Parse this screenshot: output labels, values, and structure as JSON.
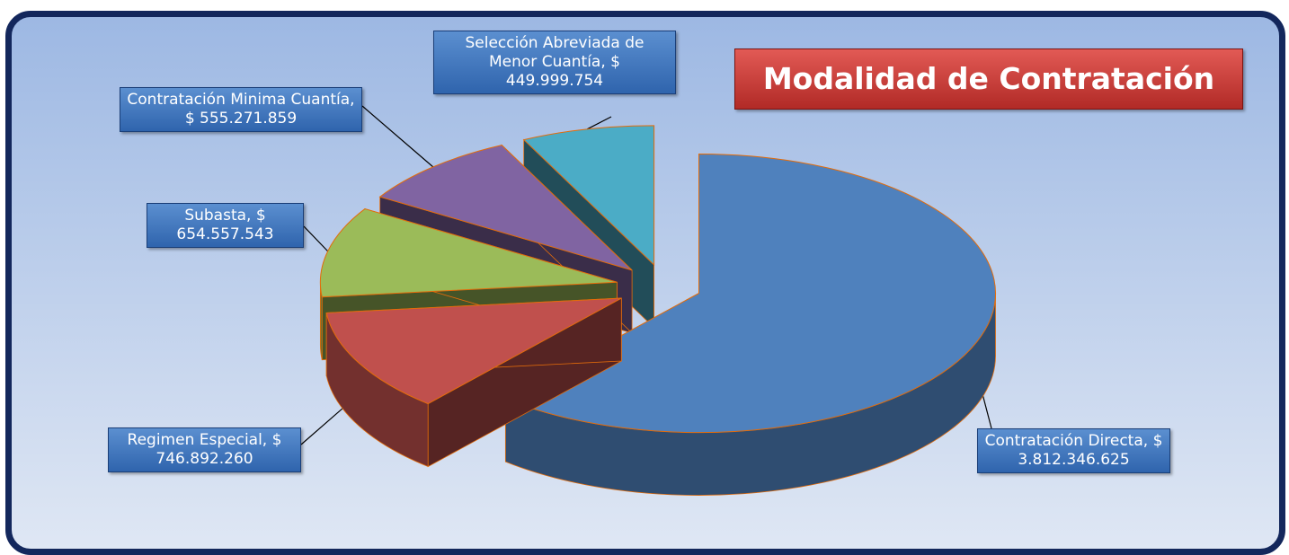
{
  "chart_data": {
    "type": "pie3d",
    "title": "Modalidad de Contratación",
    "categories": [
      "Contratación Directa,",
      "Regimen Especial,",
      "Subasta,",
      "Contratación Minima Cuantía,",
      "Selección Abreviada de Menor Cuantía,"
    ],
    "values": [
      3812346625,
      746892260,
      654557543,
      555271859,
      449999754
    ],
    "value_labels": [
      "$ 3.812.346.625",
      "$ 746.892.260",
      "$ 654.557.543",
      "$ 555.271.859",
      "$ 449.999.754"
    ],
    "colors": [
      "#4f81bd",
      "#c0504d",
      "#9bbb59",
      "#8064a2",
      "#4bacc6"
    ]
  }
}
